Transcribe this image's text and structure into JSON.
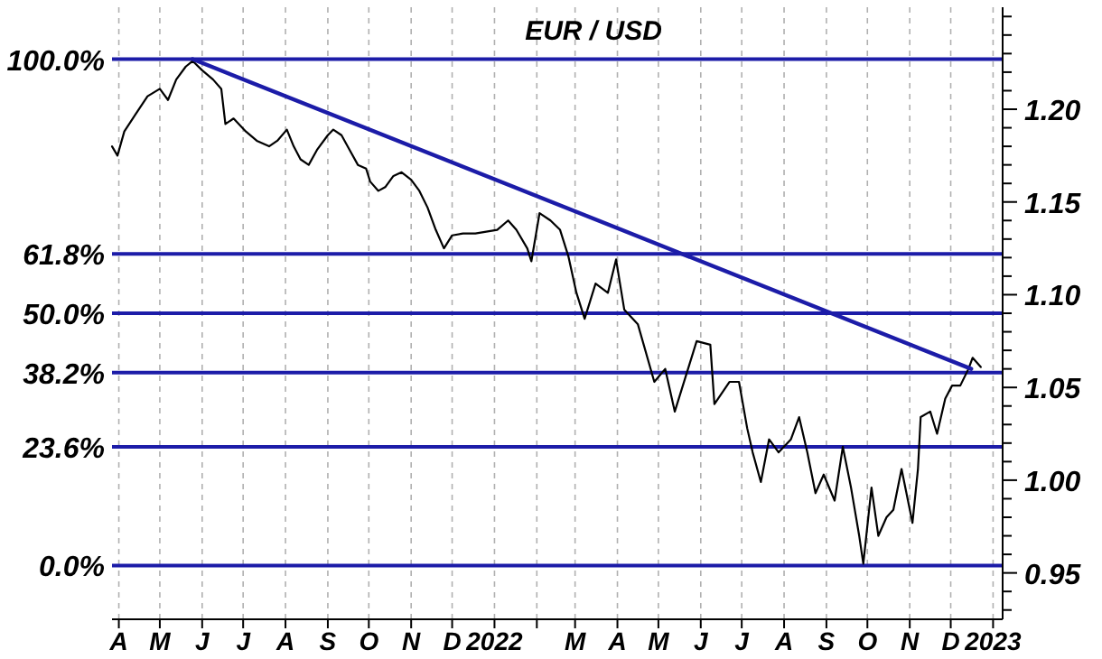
{
  "chart_data": {
    "type": "line",
    "title": "EUR / USD",
    "x": [
      "2021-03-27",
      "2021-03-31",
      "2021-04-05",
      "2021-04-13",
      "2021-04-22",
      "2021-05-01",
      "2021-05-07",
      "2021-05-13",
      "2021-05-20",
      "2021-05-25",
      "2021-06-01",
      "2021-06-09",
      "2021-06-15",
      "2021-06-18",
      "2021-06-24",
      "2021-07-03",
      "2021-07-11",
      "2021-07-20",
      "2021-07-26",
      "2021-08-02",
      "2021-08-07",
      "2021-08-12",
      "2021-08-18",
      "2021-08-24",
      "2021-09-01",
      "2021-09-05",
      "2021-09-11",
      "2021-09-17",
      "2021-09-23",
      "2021-09-29",
      "2021-10-02",
      "2021-10-08",
      "2021-10-13",
      "2021-10-19",
      "2021-10-25",
      "2021-11-01",
      "2021-11-07",
      "2021-11-13",
      "2021-11-19",
      "2021-11-25",
      "2021-12-01",
      "2021-12-09",
      "2021-12-18",
      "2021-12-26",
      "2022-01-03",
      "2022-01-11",
      "2022-01-17",
      "2022-01-25",
      "2022-01-28",
      "2022-02-03",
      "2022-02-11",
      "2022-02-18",
      "2022-02-24",
      "2022-03-02",
      "2022-03-08",
      "2022-03-16",
      "2022-03-25",
      "2022-03-31",
      "2022-04-06",
      "2022-04-16",
      "2022-04-28",
      "2022-05-06",
      "2022-05-13",
      "2022-05-21",
      "2022-05-29",
      "2022-06-08",
      "2022-06-11",
      "2022-06-22",
      "2022-06-29",
      "2022-07-05",
      "2022-07-09",
      "2022-07-15",
      "2022-07-21",
      "2022-07-28",
      "2022-08-06",
      "2022-08-12",
      "2022-08-18",
      "2022-08-24",
      "2022-08-30",
      "2022-09-07",
      "2022-09-13",
      "2022-09-19",
      "2022-09-25",
      "2022-09-28",
      "2022-10-04",
      "2022-10-09",
      "2022-10-15",
      "2022-10-20",
      "2022-10-26",
      "2022-11-03",
      "2022-11-07",
      "2022-11-09",
      "2022-11-16",
      "2022-11-21",
      "2022-11-27",
      "2022-12-02",
      "2022-12-08",
      "2022-12-14",
      "2022-12-17",
      "2022-12-23"
    ],
    "series": [
      {
        "color": "#000000",
        "values": [
          1.18,
          1.175,
          1.188,
          1.197,
          1.207,
          1.211,
          1.205,
          1.216,
          1.223,
          1.226,
          1.221,
          1.216,
          1.211,
          1.192,
          1.195,
          1.188,
          1.183,
          1.18,
          1.183,
          1.189,
          1.18,
          1.173,
          1.17,
          1.178,
          1.186,
          1.189,
          1.186,
          1.178,
          1.17,
          1.168,
          1.161,
          1.156,
          1.158,
          1.164,
          1.166,
          1.162,
          1.156,
          1.147,
          1.135,
          1.125,
          1.132,
          1.133,
          1.133,
          1.134,
          1.135,
          1.14,
          1.135,
          1.125,
          1.118,
          1.144,
          1.14,
          1.135,
          1.121,
          1.101,
          1.087,
          1.106,
          1.101,
          1.119,
          1.092,
          1.084,
          1.053,
          1.06,
          1.037,
          1.056,
          1.075,
          1.073,
          1.041,
          1.053,
          1.053,
          1.028,
          1.015,
          0.999,
          1.022,
          1.015,
          1.022,
          1.034,
          1.015,
          0.993,
          1.003,
          0.989,
          1.018,
          0.996,
          0.97,
          0.955,
          0.996,
          0.97,
          0.98,
          0.984,
          1.006,
          0.977,
          1.006,
          1.034,
          1.037,
          1.025,
          1.044,
          1.051,
          1.051,
          1.06,
          1.066,
          1.061
        ]
      },
      {
        "type": "line",
        "color": "#1c1ca8",
        "x": [
          "2021-05-25",
          "2022-12-16"
        ],
        "values": [
          1.227,
          1.06
        ]
      }
    ],
    "xlim": [
      "2021-03-27",
      "2023-01-08"
    ],
    "xticks": [
      {
        "value": "2021-04-01",
        "label": "A"
      },
      {
        "value": "2021-05-01",
        "label": "M"
      },
      {
        "value": "2021-06-01",
        "label": "J"
      },
      {
        "value": "2021-07-01",
        "label": "J"
      },
      {
        "value": "2021-08-01",
        "label": "A"
      },
      {
        "value": "2021-09-01",
        "label": "S"
      },
      {
        "value": "2021-10-01",
        "label": "O"
      },
      {
        "value": "2021-11-01",
        "label": "N"
      },
      {
        "value": "2021-12-01",
        "label": "D"
      },
      {
        "value": "2022-01-01",
        "label": "2022"
      },
      {
        "value": "2022-02-01",
        "label": null
      },
      {
        "value": "2022-03-01",
        "label": "M"
      },
      {
        "value": "2022-04-01",
        "label": "A"
      },
      {
        "value": "2022-05-01",
        "label": "M"
      },
      {
        "value": "2022-06-01",
        "label": "J"
      },
      {
        "value": "2022-07-01",
        "label": "J"
      },
      {
        "value": "2022-08-01",
        "label": "A"
      },
      {
        "value": "2022-09-01",
        "label": "S"
      },
      {
        "value": "2022-10-01",
        "label": "O"
      },
      {
        "value": "2022-11-01",
        "label": "N"
      },
      {
        "value": "2022-12-01",
        "label": "D"
      },
      {
        "value": "2023-01-01",
        "label": "2023"
      }
    ],
    "ylim": [
      0.925,
      1.255
    ],
    "yticks": [
      {
        "value": 0.93,
        "label": null
      },
      {
        "value": 0.94,
        "label": null
      },
      "0.95",
      {
        "value": 0.96,
        "label": null
      },
      {
        "value": 0.97,
        "label": null
      },
      {
        "value": 0.98,
        "label": null
      },
      {
        "value": 0.99,
        "label": null
      },
      {
        "value": 1.0,
        "label": "1.00"
      },
      {
        "value": 1.01,
        "label": null
      },
      {
        "value": 1.02,
        "label": null
      },
      {
        "value": 1.03,
        "label": null
      },
      {
        "value": 1.04,
        "label": null
      },
      1.05,
      {
        "value": 1.06,
        "label": null
      },
      {
        "value": 1.07,
        "label": null
      },
      {
        "value": 1.08,
        "label": null
      },
      {
        "value": 1.09,
        "label": null
      },
      {
        "value": 1.1,
        "label": "1.10"
      },
      {
        "value": 1.11,
        "label": null
      },
      {
        "value": 1.12,
        "label": null
      },
      {
        "value": 1.13,
        "label": null
      },
      {
        "value": 1.14,
        "label": null
      },
      1.15,
      {
        "value": 1.16,
        "label": null
      },
      {
        "value": 1.17,
        "label": null
      },
      {
        "value": 1.18,
        "label": null
      },
      {
        "value": 1.19,
        "label": null
      },
      {
        "value": 1.2,
        "label": "1.20"
      },
      {
        "value": 1.21,
        "label": null
      },
      {
        "value": 1.22,
        "label": null
      },
      {
        "value": 1.23,
        "label": null
      },
      {
        "value": 1.24,
        "label": null
      },
      {
        "value": 1.25,
        "label": null
      }
    ],
    "ref_lines": [
      {
        "axis": "y",
        "value": 1.227,
        "color": "#1c1ca8"
      },
      {
        "axis": "y",
        "value": 1.122,
        "color": "#1c1ca8"
      },
      {
        "axis": "y",
        "value": 1.09,
        "color": "#1c1ca8"
      },
      {
        "axis": "y",
        "value": 1.058,
        "color": "#1c1ca8"
      },
      {
        "axis": "y",
        "value": 1.018,
        "color": "#1c1ca8"
      },
      {
        "axis": "y",
        "value": 0.954,
        "color": "#1c1ca8"
      }
    ],
    "annotations": [
      "100.0%",
      "61.8%",
      "50.0%",
      "38.2%",
      "23.6%",
      "0.0%"
    ],
    "grid": "x"
  }
}
